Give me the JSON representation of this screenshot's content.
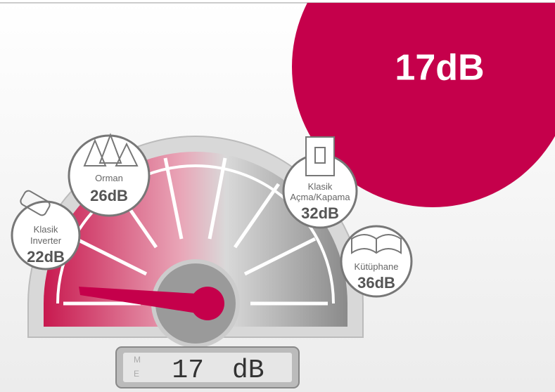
{
  "headline": "17dB",
  "bubbles": [
    {
      "lines": [
        "Orman"
      ],
      "level": "26dB"
    },
    {
      "lines": [
        "Klasik",
        "Inverter"
      ],
      "level": "22dB"
    },
    {
      "lines": [
        "Klasik",
        "Açma/Kapama"
      ],
      "level": "32dB"
    },
    {
      "lines": [
        "Kütüphane"
      ],
      "level": "36dB"
    }
  ],
  "display": {
    "mode": [
      "M",
      "E"
    ],
    "reading": "17",
    "unit": "dB"
  }
}
